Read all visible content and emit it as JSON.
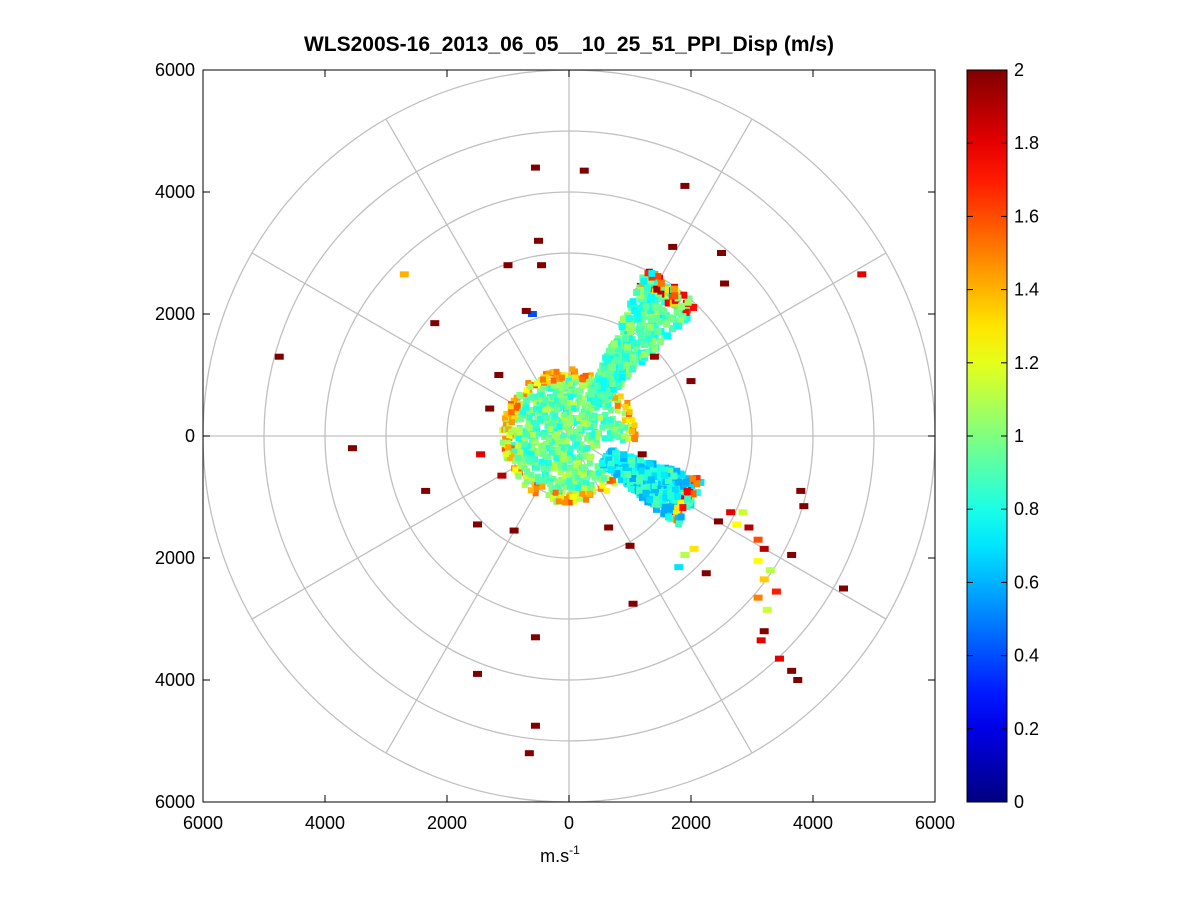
{
  "chart_data": {
    "type": "polar-ppi-scatter",
    "title": "WLS200S-16_2013_06_05__10_25_51_PPI_Disp (m/s)",
    "xlabel_base": "m.s",
    "xlabel_sup": "-1",
    "ylabel": "",
    "xlim": [
      -6000,
      6000
    ],
    "ylim": [
      -6000,
      6000
    ],
    "xticks": [
      {
        "value": -6000,
        "label": "6000"
      },
      {
        "value": -4000,
        "label": "4000"
      },
      {
        "value": -2000,
        "label": "2000"
      },
      {
        "value": 0,
        "label": "0"
      },
      {
        "value": 2000,
        "label": "2000"
      },
      {
        "value": 4000,
        "label": "4000"
      },
      {
        "value": 6000,
        "label": "6000"
      }
    ],
    "yticks": [
      {
        "value": 6000,
        "label": "6000"
      },
      {
        "value": 4000,
        "label": "4000"
      },
      {
        "value": 2000,
        "label": "2000"
      },
      {
        "value": 0,
        "label": "0"
      },
      {
        "value": -2000,
        "label": "2000"
      },
      {
        "value": -4000,
        "label": "4000"
      },
      {
        "value": -6000,
        "label": "6000"
      }
    ],
    "polar_rings": [
      1000,
      2000,
      3000,
      4000,
      5000,
      6000
    ],
    "polar_spokes_deg": [
      0,
      30,
      60,
      90,
      120,
      150,
      180,
      210,
      240,
      270,
      300,
      330
    ],
    "colorbar": {
      "min": 0,
      "max": 2,
      "ticks": [
        "0",
        "0.2",
        "0.4",
        "0.6",
        "0.8",
        "1",
        "1.2",
        "1.4",
        "1.6",
        "1.8",
        "2"
      ],
      "colormap": "jet"
    },
    "near_field_clutter": {
      "radius_range": [
        0,
        1100
      ],
      "typical_value": 0.95,
      "edge_value": 1.3
    },
    "sector_ne": {
      "azimuth_deg": [
        25,
        45
      ],
      "range": [
        700,
        3000
      ],
      "typical_value": 0.9
    },
    "sector_se": {
      "azimuth_deg": [
        108,
        130
      ],
      "range": [
        700,
        2300
      ],
      "typical_value": 0.75
    },
    "points": [
      {
        "x": -550,
        "y": 4400,
        "v": 2.0
      },
      {
        "x": 250,
        "y": 4350,
        "v": 2.0
      },
      {
        "x": 1900,
        "y": 4100,
        "v": 2.0
      },
      {
        "x": -500,
        "y": 3200,
        "v": 2.0
      },
      {
        "x": 1700,
        "y": 3100,
        "v": 2.0
      },
      {
        "x": 2500,
        "y": 3000,
        "v": 2.0
      },
      {
        "x": -1000,
        "y": 2800,
        "v": 2.0
      },
      {
        "x": -450,
        "y": 2800,
        "v": 2.0
      },
      {
        "x": 2550,
        "y": 2500,
        "v": 2.0
      },
      {
        "x": -2700,
        "y": 2650,
        "v": 1.4
      },
      {
        "x": 4800,
        "y": 2650,
        "v": 1.8
      },
      {
        "x": -2200,
        "y": 1850,
        "v": 2.0
      },
      {
        "x": -4750,
        "y": 1300,
        "v": 2.0
      },
      {
        "x": 2000,
        "y": 900,
        "v": 2.0
      },
      {
        "x": 1400,
        "y": 1300,
        "v": 1.95
      },
      {
        "x": -3550,
        "y": -200,
        "v": 2.0
      },
      {
        "x": -2350,
        "y": -900,
        "v": 2.0
      },
      {
        "x": 2450,
        "y": -1400,
        "v": 2.0
      },
      {
        "x": 2650,
        "y": -1250,
        "v": 1.8
      },
      {
        "x": 2850,
        "y": -1250,
        "v": 1.15
      },
      {
        "x": 2750,
        "y": -1450,
        "v": 1.25
      },
      {
        "x": 2950,
        "y": -1500,
        "v": 1.9
      },
      {
        "x": 3100,
        "y": -1700,
        "v": 1.6
      },
      {
        "x": 3200,
        "y": -1850,
        "v": 1.9
      },
      {
        "x": 3650,
        "y": -1950,
        "v": 2.0
      },
      {
        "x": 3800,
        "y": -900,
        "v": 2.0
      },
      {
        "x": 3850,
        "y": -1150,
        "v": 2.0
      },
      {
        "x": 3100,
        "y": -2050,
        "v": 1.25
      },
      {
        "x": 3300,
        "y": -2200,
        "v": 1.1
      },
      {
        "x": 3200,
        "y": -2350,
        "v": 1.35
      },
      {
        "x": 3400,
        "y": -2550,
        "v": 1.7
      },
      {
        "x": 3100,
        "y": -2650,
        "v": 1.5
      },
      {
        "x": 3250,
        "y": -2850,
        "v": 1.15
      },
      {
        "x": 3200,
        "y": -3200,
        "v": 2.0
      },
      {
        "x": 3150,
        "y": -3350,
        "v": 1.8
      },
      {
        "x": 3450,
        "y": -3650,
        "v": 1.8
      },
      {
        "x": 3650,
        "y": -3850,
        "v": 2.0
      },
      {
        "x": 3750,
        "y": -4000,
        "v": 2.0
      },
      {
        "x": 4500,
        "y": -2500,
        "v": 2.0
      },
      {
        "x": 1900,
        "y": -1950,
        "v": 1.1
      },
      {
        "x": 2050,
        "y": -1850,
        "v": 1.3
      },
      {
        "x": 1800,
        "y": -2150,
        "v": 0.7
      },
      {
        "x": 2250,
        "y": -2250,
        "v": 2.0
      },
      {
        "x": 1050,
        "y": -2750,
        "v": 2.0
      },
      {
        "x": -1500,
        "y": -3900,
        "v": 2.0
      },
      {
        "x": -550,
        "y": -3300,
        "v": 2.0
      },
      {
        "x": -550,
        "y": -4750,
        "v": 2.0
      },
      {
        "x": -650,
        "y": -5200,
        "v": 2.0
      },
      {
        "x": -1500,
        "y": -1450,
        "v": 2.0
      },
      {
        "x": -900,
        "y": -1550,
        "v": 2.0
      },
      {
        "x": 650,
        "y": -1500,
        "v": 2.0
      },
      {
        "x": 1000,
        "y": -1800,
        "v": 2.0
      },
      {
        "x": -1150,
        "y": 1000,
        "v": 2.0
      },
      {
        "x": -1450,
        "y": -300,
        "v": 1.8
      },
      {
        "x": 1200,
        "y": -300,
        "v": 2.0
      },
      {
        "x": -1100,
        "y": -650,
        "v": 1.9
      },
      {
        "x": -1300,
        "y": 450,
        "v": 2.0
      },
      {
        "x": -600,
        "y": 2000,
        "v": 0.4
      },
      {
        "x": -700,
        "y": 2050,
        "v": 2.0
      }
    ]
  }
}
